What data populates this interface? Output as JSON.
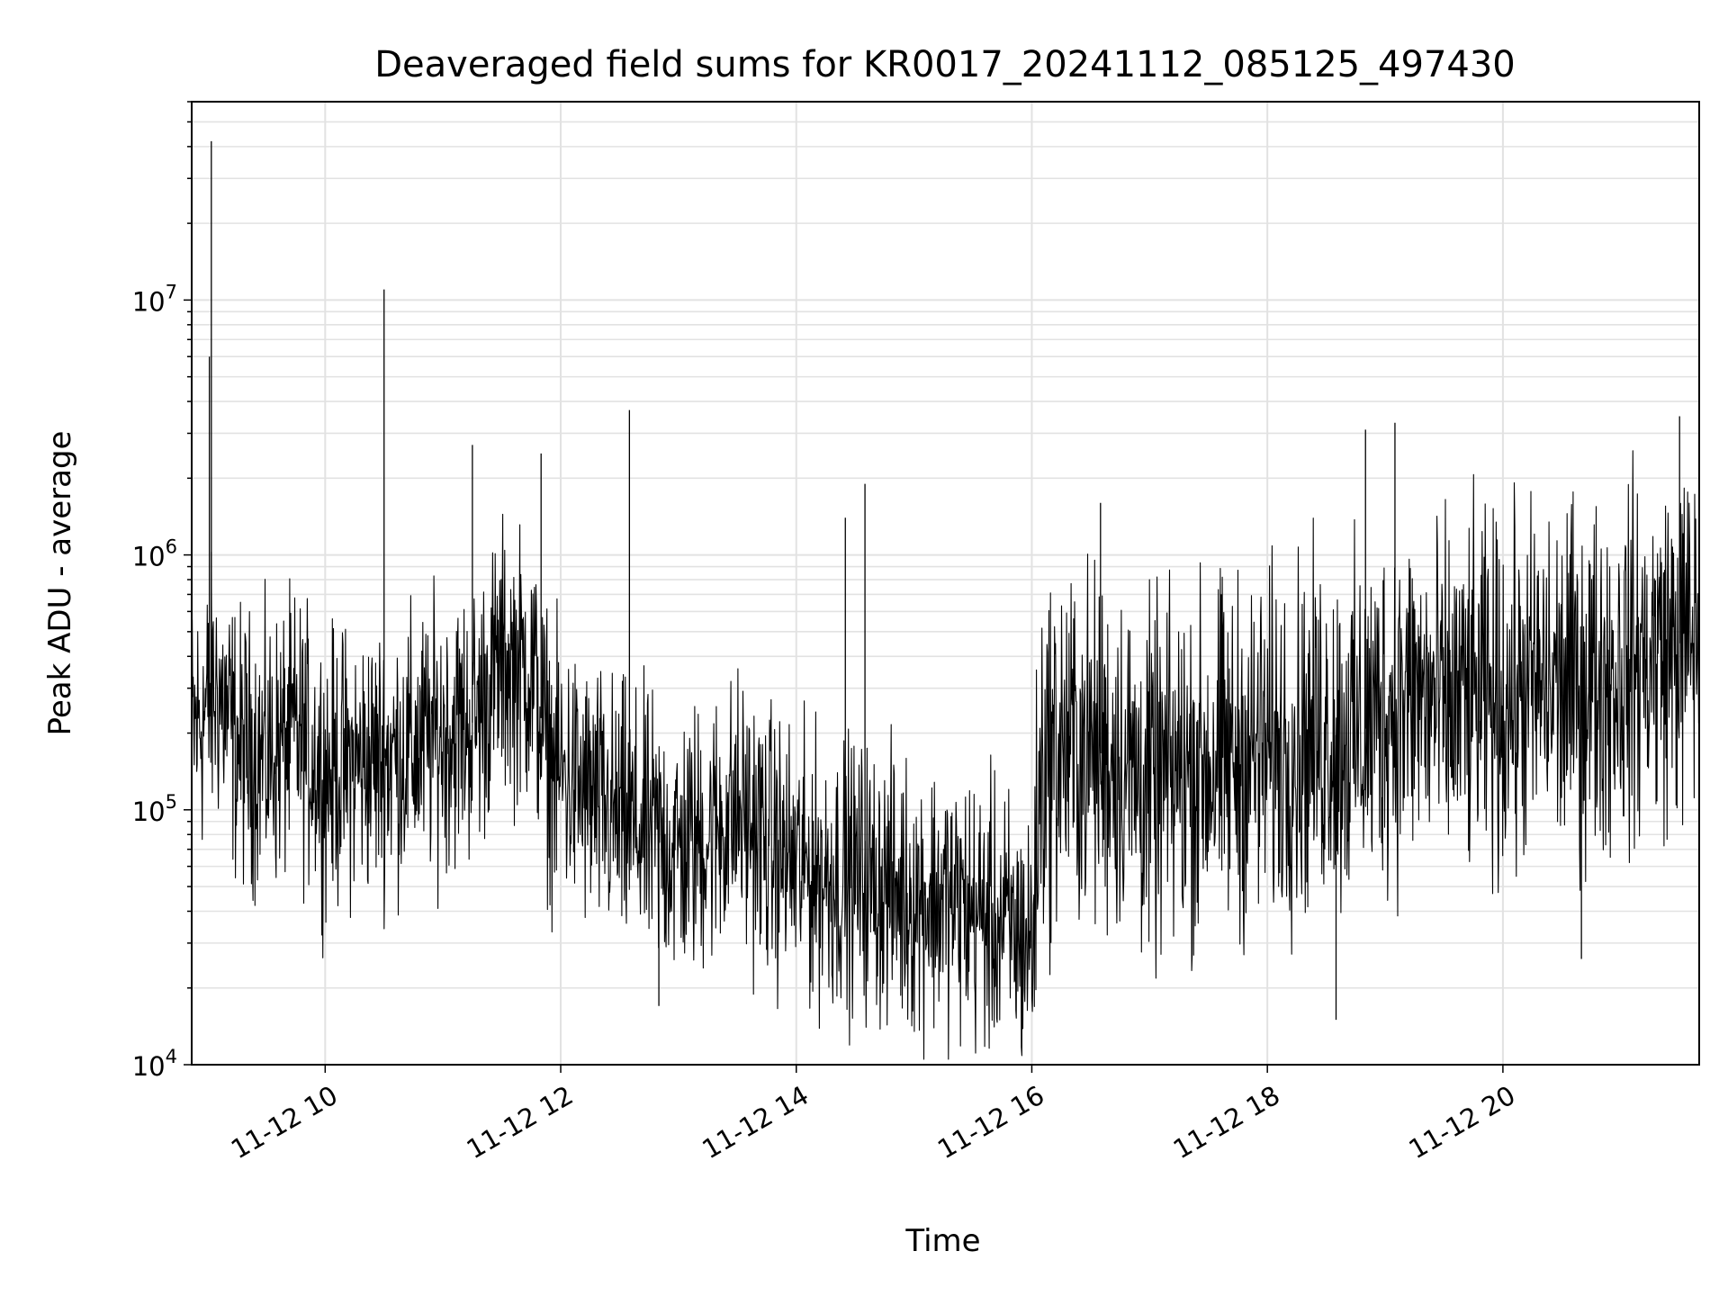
{
  "chart_data": {
    "type": "line",
    "title": "Deaveraged field sums for KR0017_20241112_085125_497430",
    "xlabel": "Time",
    "ylabel": "Peak ADU - average",
    "x_unit": "hours",
    "xlim": [
      "11-12 08:52",
      "11-12 21:40"
    ],
    "ylim": [
      10000,
      60000000
    ],
    "yscale": "log",
    "grid": true,
    "line_color": "#000000",
    "x_ticks": [
      {
        "value": "11-12 10:00",
        "label": "11-12 10"
      },
      {
        "value": "11-12 12:00",
        "label": "11-12 12"
      },
      {
        "value": "11-12 14:00",
        "label": "11-12 14"
      },
      {
        "value": "11-12 16:00",
        "label": "11-12 16"
      },
      {
        "value": "11-12 18:00",
        "label": "11-12 18"
      },
      {
        "value": "11-12 20:00",
        "label": "11-12 20"
      }
    ],
    "y_ticks": [
      {
        "value": 10000,
        "base": "10",
        "exp": "4"
      },
      {
        "value": 100000,
        "base": "10",
        "exp": "5"
      },
      {
        "value": 1000000,
        "base": "10",
        "exp": "6"
      },
      {
        "value": 10000000,
        "base": "10",
        "exp": "7"
      }
    ],
    "series": [
      {
        "x": [
          "11-12 08:52",
          "11-12 09:00",
          "11-12 09:05",
          "11-12 09:15",
          "11-12 09:30",
          "11-12 09:45",
          "11-12 10:00",
          "11-12 10:15",
          "11-12 10:30",
          "11-12 10:45",
          "11-12 11:00",
          "11-12 11:15",
          "11-12 11:30",
          "11-12 11:45",
          "11-12 11:55",
          "11-12 12:15",
          "11-12 12:30",
          "11-12 12:45",
          "11-12 13:00",
          "11-12 13:15",
          "11-12 13:30",
          "11-12 13:45",
          "11-12 14:00",
          "11-12 14:15",
          "11-12 14:30",
          "11-12 14:45",
          "11-12 15:00",
          "11-12 15:15",
          "11-12 15:30",
          "11-12 15:45",
          "11-12 16:00",
          "11-12 16:05",
          "11-12 16:15",
          "11-12 16:30",
          "11-12 16:45",
          "11-12 17:00",
          "11-12 17:15",
          "11-12 17:30",
          "11-12 17:45",
          "11-12 18:00",
          "11-12 18:15",
          "11-12 18:30",
          "11-12 18:45",
          "11-12 19:00",
          "11-12 19:15",
          "11-12 19:30",
          "11-12 19:45",
          "11-12 20:00",
          "11-12 20:15",
          "11-12 20:30",
          "11-12 20:45",
          "11-12 21:00",
          "11-12 21:15",
          "11-12 21:30",
          "11-12 21:40"
        ],
        "y": [
          200000,
          250000,
          300000,
          180000,
          160000,
          200000,
          140000,
          150000,
          160000,
          170000,
          200000,
          220000,
          380000,
          350000,
          150000,
          110000,
          90000,
          80000,
          70000,
          80000,
          100000,
          75000,
          60000,
          55000,
          55000,
          50000,
          45000,
          45000,
          40000,
          35000,
          30000,
          150000,
          180000,
          170000,
          160000,
          120000,
          140000,
          150000,
          160000,
          170000,
          180000,
          200000,
          190000,
          250000,
          280000,
          250000,
          270000,
          260000,
          300000,
          300000,
          320000,
          350000,
          400000,
          450000,
          500000
        ]
      }
    ],
    "spikes": [
      {
        "x": "11-12 09:02",
        "y": 42000000
      },
      {
        "x": "11-12 09:01",
        "y": 6000000
      },
      {
        "x": "11-12 10:30",
        "y": 11000000
      },
      {
        "x": "11-12 11:15",
        "y": 2700000
      },
      {
        "x": "11-12 11:50",
        "y": 2500000
      },
      {
        "x": "11-12 12:35",
        "y": 3700000
      },
      {
        "x": "11-12 14:35",
        "y": 1900000
      },
      {
        "x": "11-12 14:25",
        "y": 1400000
      },
      {
        "x": "11-12 16:35",
        "y": 1600000
      },
      {
        "x": "11-12 18:50",
        "y": 3100000
      },
      {
        "x": "11-12 19:05",
        "y": 3300000
      },
      {
        "x": "11-12 21:30",
        "y": 3500000
      },
      {
        "x": "11-12 12:50",
        "y": 17000
      },
      {
        "x": "11-12 18:35",
        "y": 15000
      },
      {
        "x": "11-12 20:40",
        "y": 26000
      }
    ]
  }
}
